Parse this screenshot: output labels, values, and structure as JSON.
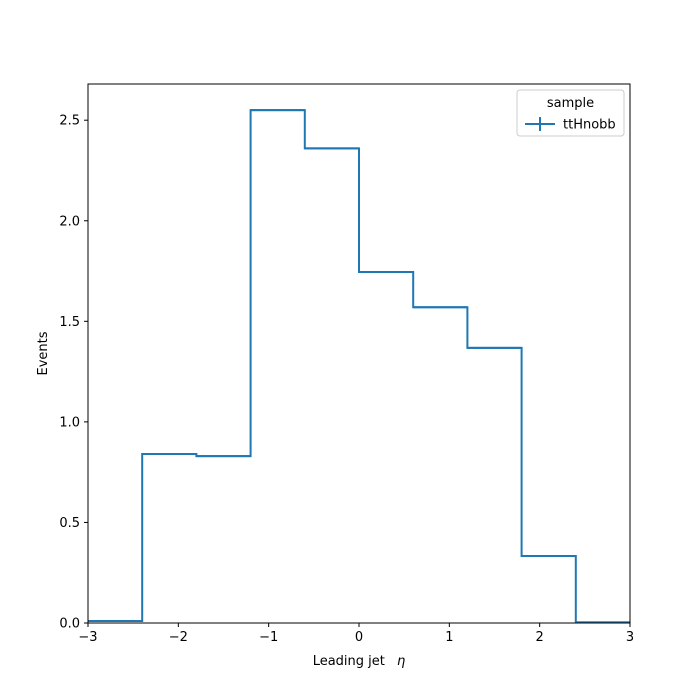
{
  "chart_data": {
    "type": "histogram-step",
    "xlabel": "Leading jet",
    "xlabel_symbol": "η",
    "ylabel": "Events",
    "xlim": [
      -3,
      3
    ],
    "ylim": [
      0,
      2.68
    ],
    "xticks": [
      -3,
      -2,
      -1,
      0,
      1,
      2,
      3
    ],
    "xtick_labels": [
      "−3",
      "−2",
      "−1",
      "0",
      "1",
      "2",
      "3"
    ],
    "yticks": [
      0,
      0.5,
      1.0,
      1.5,
      2.0,
      2.5
    ],
    "ytick_labels": [
      "0.0",
      "0.5",
      "1.0",
      "1.5",
      "2.0",
      "2.5"
    ],
    "grid": false,
    "legend": {
      "title": "sample",
      "placement": "top-right",
      "entries": [
        "ttHnobb"
      ]
    },
    "series": [
      {
        "name": "ttHnobb",
        "color": "#1f77b4",
        "bin_edges": [
          -3,
          -2.4,
          -1.8,
          -1.2,
          -0.6,
          0,
          0.6,
          1.2,
          1.8,
          2.4,
          3
        ],
        "values": [
          0.01,
          0.84,
          0.83,
          2.55,
          2.36,
          1.745,
          1.57,
          1.368,
          0.333,
          0.003
        ]
      }
    ]
  }
}
